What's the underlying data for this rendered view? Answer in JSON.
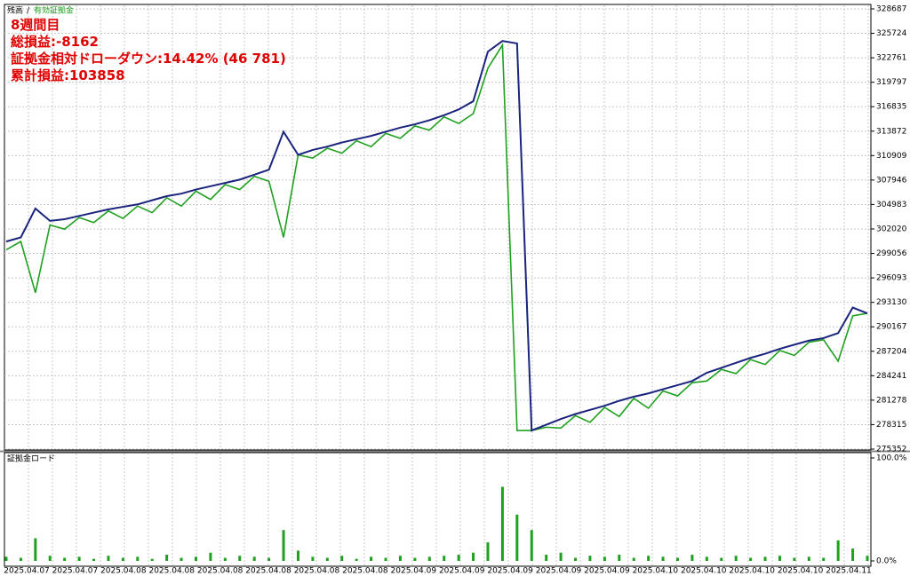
{
  "chart_data": [
    {
      "type": "line",
      "annotations": [
        "8週間目",
        "総損益:-8162",
        "証拠金相対ドローダウン:14.42% (46 781)",
        "累計損益:103858"
      ],
      "series": [
        {
          "name": "残高",
          "color": "#1a237e",
          "values": [
            300500,
            301000,
            304500,
            303000,
            303200,
            303600,
            304000,
            304400,
            304700,
            305000,
            305500,
            306000,
            306300,
            306800,
            307200,
            307600,
            308000,
            308600,
            309200,
            313800,
            311000,
            311600,
            312000,
            312500,
            312900,
            313300,
            313800,
            314300,
            314700,
            315200,
            315800,
            316500,
            317500,
            323500,
            324800,
            324500,
            277600,
            278300,
            279000,
            279600,
            280100,
            280600,
            281200,
            281700,
            282100,
            282600,
            283100,
            283600,
            284600,
            285200,
            285800,
            286400,
            286900,
            287500,
            288000,
            288500,
            288800,
            289400,
            292500,
            291800
          ]
        },
        {
          "name": "有効証拠金",
          "color": "#1fa01f",
          "values": [
            299500,
            300500,
            294300,
            302500,
            302000,
            303400,
            302800,
            304200,
            303300,
            304800,
            304000,
            305800,
            304800,
            306600,
            305600,
            307400,
            306800,
            308400,
            307800,
            301000,
            311000,
            310600,
            311800,
            311200,
            312700,
            312000,
            313600,
            313000,
            314500,
            314000,
            315600,
            314800,
            316000,
            321500,
            324300,
            277600,
            277600,
            278000,
            277900,
            279400,
            278600,
            280400,
            279300,
            281500,
            280300,
            282400,
            281800,
            283400,
            283600,
            285000,
            284500,
            286200,
            285600,
            287300,
            286700,
            288300,
            288600,
            286000,
            291500,
            291800
          ]
        }
      ],
      "ylim": [
        275352,
        328687
      ],
      "yticks": [
        275352,
        278315,
        281278,
        284241,
        287204,
        290167,
        293130,
        296093,
        299056,
        302020,
        304983,
        307946,
        310909,
        313872,
        316835,
        319797,
        322761,
        325724,
        328687
      ],
      "grid": true
    },
    {
      "type": "bar",
      "title": "証拠金ロード",
      "color": "#1fa01f",
      "values": [
        4,
        3,
        22,
        5,
        3,
        4,
        2,
        5,
        3,
        4,
        2,
        6,
        3,
        4,
        8,
        3,
        5,
        4,
        3,
        30,
        10,
        4,
        3,
        5,
        2,
        4,
        3,
        5,
        3,
        4,
        5,
        6,
        8,
        18,
        72,
        45,
        30,
        6,
        8,
        3,
        5,
        4,
        6,
        3,
        5,
        4,
        3,
        6,
        4,
        3,
        5,
        3,
        4,
        5,
        3,
        4,
        3,
        20,
        12,
        5
      ],
      "ylim": [
        0,
        100
      ],
      "yticks": [
        {
          "value": 0,
          "label": "0.0%"
        },
        {
          "value": 100,
          "label": "100.0%"
        }
      ],
      "x_labels": [
        "2025.04.07",
        "2025.04.07",
        "2025.04.08",
        "2025.04.08",
        "2025.04.08",
        "2025.04.08",
        "2025.04.08",
        "2025.04.08",
        "2025.04.09",
        "2025.04.09",
        "2025.04.09",
        "2025.04.09",
        "2025.04.09",
        "2025.04.10",
        "2025.04.10",
        "2025.04.10",
        "2025.04.10",
        "2025.04.11"
      ]
    }
  ]
}
